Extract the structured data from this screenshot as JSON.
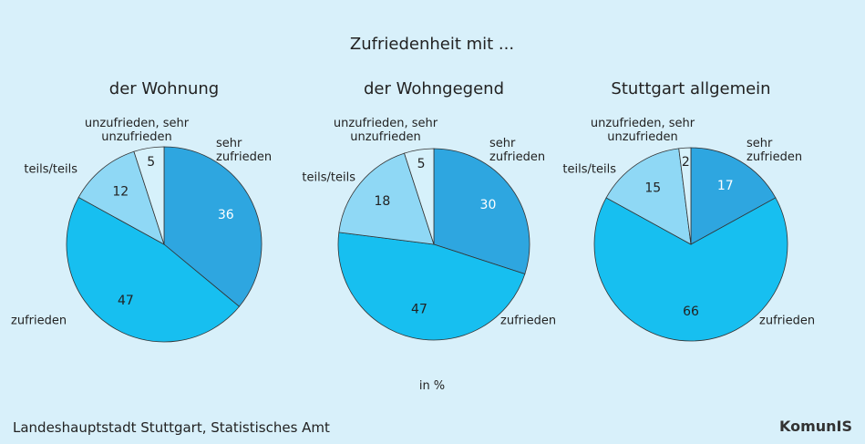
{
  "title": "Zufriedenheit mit ...",
  "unit_label": "in %",
  "source": "Landeshauptstadt Stuttgart, Statistisches Amt",
  "logo": "KomunIS",
  "chart_data": [
    {
      "type": "pie",
      "title": "der Wohnung",
      "categories": [
        "sehr zufrieden",
        "zufrieden",
        "teils/teils",
        "unzufrieden, sehr unzufrieden"
      ],
      "values": [
        36,
        47,
        12,
        5
      ],
      "colors": [
        "#2ea6e0",
        "#17bff0",
        "#8fd8f5",
        "#d6f1fb"
      ]
    },
    {
      "type": "pie",
      "title": "der Wohngegend",
      "categories": [
        "sehr zufrieden",
        "zufrieden",
        "teils/teils",
        "unzufrieden, sehr unzufrieden"
      ],
      "values": [
        30,
        47,
        18,
        5
      ],
      "colors": [
        "#2ea6e0",
        "#17bff0",
        "#8fd8f5",
        "#d6f1fb"
      ]
    },
    {
      "type": "pie",
      "title": "Stuttgart allgemein",
      "categories": [
        "sehr zufrieden",
        "zufrieden",
        "teils/teils",
        "unzufrieden, sehr unzufrieden"
      ],
      "values": [
        17,
        66,
        15,
        2
      ],
      "colors": [
        "#2ea6e0",
        "#17bff0",
        "#8fd8f5",
        "#d6f1fb"
      ]
    }
  ]
}
